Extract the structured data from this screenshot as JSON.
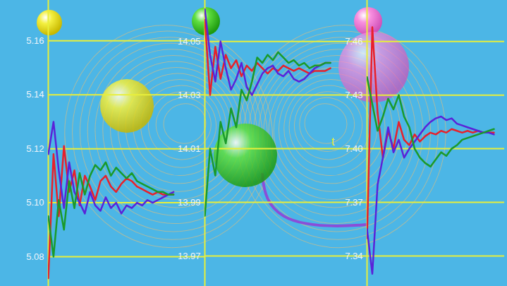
{
  "chart_data": [
    {
      "type": "line",
      "tick_labels": "y",
      "grid": true,
      "x": [
        0,
        1,
        2,
        3,
        4,
        5,
        6,
        7,
        8,
        9,
        10,
        11,
        12,
        13,
        14,
        15,
        16,
        17,
        18,
        19,
        20,
        21,
        22,
        23,
        24
      ],
      "xlim": [
        0,
        30
      ],
      "ylim": [
        5.069,
        5.175
      ],
      "yticks": [
        5.16,
        5.14,
        5.12,
        {
          "value": 5.1,
          "label": "5.10"
        },
        5.08
      ],
      "series": [
        {
          "color": "#e8202a",
          "values": [
            5.072,
            5.118,
            5.095,
            5.121,
            5.104,
            5.112,
            5.099,
            5.11,
            5.106,
            5.101,
            5.108,
            5.11,
            5.106,
            5.104,
            5.107,
            5.109,
            5.108,
            5.106,
            5.105,
            5.104,
            5.103,
            5.104,
            5.103,
            5.103,
            5.103
          ]
        },
        {
          "color": "#5a22d8",
          "values": [
            5.118,
            5.13,
            5.112,
            5.098,
            5.115,
            5.104,
            5.1,
            5.096,
            5.104,
            5.099,
            5.097,
            5.102,
            5.098,
            5.1,
            5.096,
            5.099,
            5.098,
            5.1,
            5.099,
            5.101,
            5.1,
            5.101,
            5.102,
            5.103,
            5.104
          ]
        },
        {
          "color": "#1a9a2a",
          "values": [
            5.095,
            5.08,
            5.101,
            5.09,
            5.108,
            5.098,
            5.111,
            5.103,
            5.11,
            5.114,
            5.112,
            5.115,
            5.11,
            5.113,
            5.111,
            5.109,
            5.111,
            5.108,
            5.107,
            5.106,
            5.105,
            5.104,
            5.104,
            5.103,
            5.103
          ]
        }
      ]
    },
    {
      "type": "line",
      "tick_labels": "y",
      "grid": true,
      "x": [
        0,
        1,
        2,
        3,
        4,
        5,
        6,
        7,
        8,
        9,
        10,
        11,
        12,
        13,
        14,
        15,
        16,
        17,
        18,
        19,
        20,
        21,
        22,
        23,
        24
      ],
      "xlim": [
        0,
        31
      ],
      "ylim": [
        13.9587,
        14.0653
      ],
      "yticks": [
        14.05,
        14.03,
        14.01,
        13.99,
        13.97
      ],
      "series": [
        {
          "color": "#e8202a",
          "values": [
            14.058,
            14.03,
            14.048,
            14.036,
            14.045,
            14.04,
            14.043,
            14.037,
            14.041,
            14.039,
            14.042,
            14.04,
            14.038,
            14.04,
            14.039,
            14.041,
            14.04,
            14.039,
            14.04,
            14.039,
            14.038,
            14.039,
            14.039,
            14.039,
            14.04
          ]
        },
        {
          "color": "#5a22d8",
          "values": [
            14.062,
            14.045,
            14.035,
            14.05,
            14.04,
            14.032,
            14.036,
            14.042,
            14.033,
            14.03,
            14.034,
            14.038,
            14.04,
            14.041,
            14.038,
            14.037,
            14.039,
            14.036,
            14.035,
            14.036,
            14.038,
            14.04,
            14.041,
            14.042,
            14.042
          ]
        },
        {
          "color": "#1a9a2a",
          "values": [
            13.985,
            14.01,
            14.0,
            14.02,
            14.012,
            14.025,
            14.018,
            14.032,
            14.028,
            14.035,
            14.044,
            14.042,
            14.045,
            14.043,
            14.046,
            14.044,
            14.042,
            14.043,
            14.041,
            14.042,
            14.04,
            14.041,
            14.041,
            14.042,
            14.042
          ]
        }
      ],
      "annotations": [
        {
          "text": "t"
        }
      ]
    },
    {
      "type": "line",
      "tick_labels": "y",
      "grid": true,
      "x": [
        0,
        1,
        2,
        3,
        4,
        5,
        6,
        7,
        8,
        9,
        10,
        11,
        12,
        13,
        14,
        15,
        16,
        17,
        18,
        19,
        20,
        21,
        22,
        23,
        24
      ],
      "xlim": [
        0,
        26
      ],
      "ylim": [
        7.323,
        7.483
      ],
      "yticks": [
        7.46,
        7.43,
        {
          "value": 7.4,
          "label": "7.40"
        },
        7.37,
        7.34
      ],
      "series": [
        {
          "color": "#e8202a",
          "values": [
            7.35,
            7.468,
            7.42,
            7.395,
            7.41,
            7.4,
            7.415,
            7.405,
            7.402,
            7.408,
            7.404,
            7.407,
            7.409,
            7.408,
            7.41,
            7.409,
            7.411,
            7.41,
            7.409,
            7.41,
            7.409,
            7.41,
            7.409,
            7.409,
            7.409
          ]
        },
        {
          "color": "#5a22d8",
          "values": [
            7.355,
            7.33,
            7.38,
            7.395,
            7.412,
            7.398,
            7.405,
            7.395,
            7.4,
            7.404,
            7.408,
            7.412,
            7.415,
            7.417,
            7.418,
            7.416,
            7.417,
            7.414,
            7.413,
            7.412,
            7.411,
            7.41,
            7.409,
            7.409,
            7.408
          ]
        },
        {
          "color": "#1a9a2a",
          "values": [
            7.44,
            7.425,
            7.41,
            7.418,
            7.428,
            7.422,
            7.43,
            7.418,
            7.412,
            7.4,
            7.395,
            7.392,
            7.39,
            7.394,
            7.398,
            7.396,
            7.4,
            7.402,
            7.405,
            7.406,
            7.407,
            7.408,
            7.409,
            7.41,
            7.411
          ]
        }
      ]
    }
  ]
}
